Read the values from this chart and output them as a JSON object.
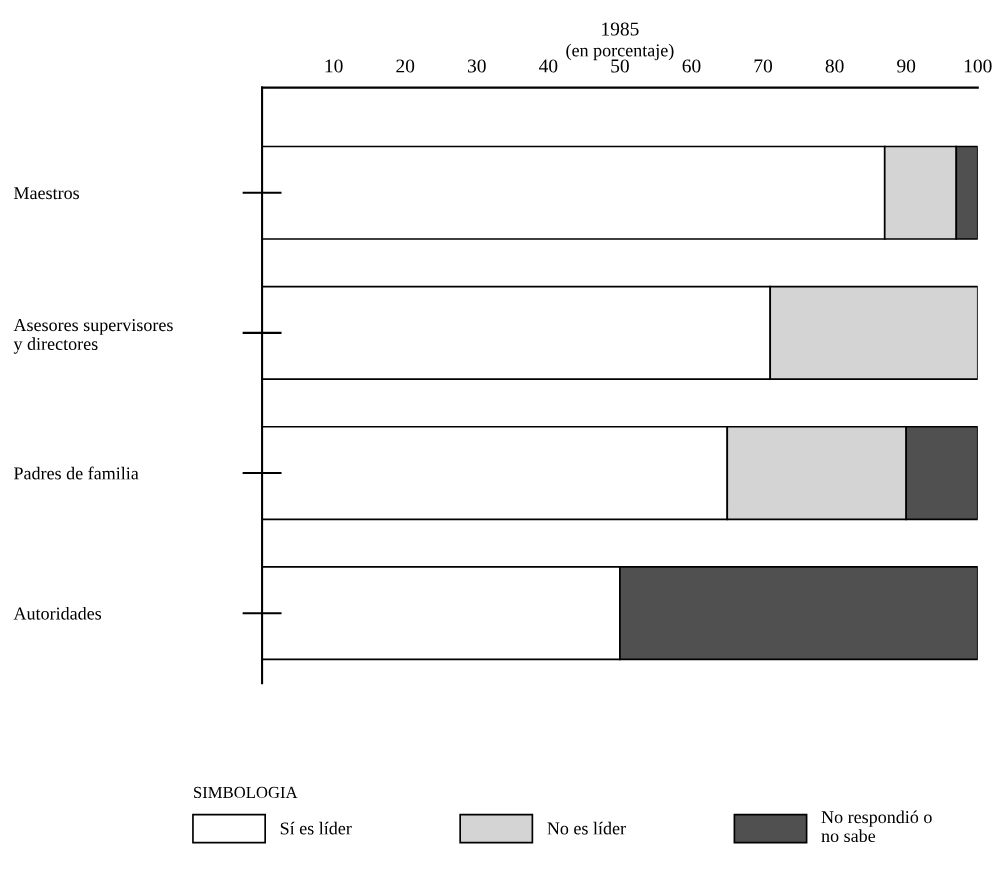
{
  "chart_data": {
    "type": "bar",
    "orientation": "horizontal",
    "stacked": true,
    "title": "1985",
    "subtitle": "(en porcentaje)",
    "categories": [
      "Maestros",
      "Asesores supervisores\ny directores",
      "Padres de familia",
      "Autoridades"
    ],
    "series": [
      {
        "name": "Sí es líder",
        "color": "#ffffff",
        "values": [
          87,
          71,
          65,
          50
        ]
      },
      {
        "name": "No es líder",
        "color": "#d4d4d4",
        "values": [
          10,
          29,
          25,
          0
        ]
      },
      {
        "name": "No respondió o\nno sabe",
        "color": "#505050",
        "values": [
          3,
          0,
          10,
          50
        ]
      }
    ],
    "xlim": [
      0,
      100
    ],
    "xticks": [
      10,
      20,
      30,
      40,
      50,
      60,
      70,
      80,
      90,
      100
    ],
    "legend_title": "SIMBOLOGIA",
    "legend": "bottom",
    "grid": false
  }
}
